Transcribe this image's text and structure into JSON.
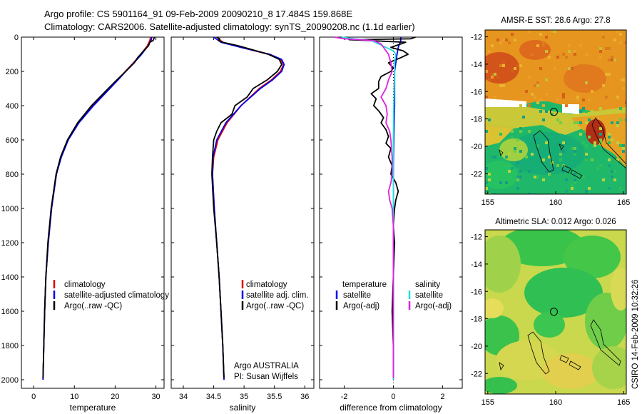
{
  "header": {
    "line1": "Argo profile: CS 5901164_91 09-Feb-2009 20090210_8 17.484S 159.868E",
    "line2": "Climatology: CARS2006. Satellite-adjusted climatology: synTS_20090208.nc (1.1d earlier)"
  },
  "colors": {
    "climatology": "#e00000",
    "satellite": "#0000ee",
    "argo": "#000000",
    "satellite_salinity": "#22dddd",
    "argo_salinity": "#dd22dd"
  },
  "panels": {
    "temperature": {
      "xlabel": "temperature",
      "legend": [
        "climatology",
        "satellite-adjusted climatology",
        "Argo(..raw -QC)"
      ]
    },
    "salinity": {
      "xlabel": "salinity",
      "legend": [
        "climatology",
        "satellite adj. clim.",
        "Argo(..raw -QC)"
      ],
      "note1": "Argo AUSTRALIA",
      "note2": "PI: Susan Wijffels"
    },
    "difference": {
      "xlabel": "difference from climatology",
      "legend_head_left": "temperature",
      "legend_head_right": "salinity",
      "legend_left": [
        "satellite",
        "Argo(-adj)"
      ],
      "legend_right": [
        "satellite",
        "Argo(-adj)"
      ]
    }
  },
  "maps": {
    "sst_title": "AMSR-E SST: 28.6 Argo: 27.8",
    "sla_title": "Altimetric SLA: 0.012 Argo: 0.026"
  },
  "footer": {
    "stamp": "CSIRO 14-Feb-2009 10:32:26"
  },
  "chart_data": [
    {
      "type": "line",
      "name": "temperature",
      "xlabel": "temperature",
      "ylabel": "",
      "xlim": [
        -3,
        32
      ],
      "ylim": [
        2050,
        0
      ],
      "xticks": [
        0,
        10,
        20,
        30
      ],
      "yticks": [
        0,
        200,
        400,
        600,
        800,
        1000,
        1200,
        1400,
        1600,
        1800,
        2000
      ],
      "legend_position": "lower-right",
      "series": [
        {
          "name": "climatology",
          "color": "#e00000",
          "depth": [
            0,
            20,
            50,
            100,
            150,
            200,
            250,
            300,
            400,
            500,
            600,
            700,
            800,
            1000,
            1200,
            1400,
            1600,
            1800,
            2000
          ],
          "values": [
            28.7,
            28.5,
            27.9,
            26.3,
            24.5,
            22.5,
            20.6,
            18.6,
            14.6,
            11.0,
            8.4,
            6.7,
            5.6,
            4.4,
            3.6,
            3.0,
            2.7,
            2.5,
            2.3
          ]
        },
        {
          "name": "satellite-adjusted climatology",
          "color": "#0000ee",
          "depth": [
            0,
            20,
            50,
            100,
            150,
            200,
            250,
            300,
            400,
            500,
            600,
            700,
            800,
            1000,
            1200,
            1400,
            1600,
            1800,
            2000
          ],
          "values": [
            29.0,
            28.8,
            28.1,
            26.5,
            24.6,
            22.6,
            20.7,
            18.7,
            14.7,
            11.1,
            8.5,
            6.8,
            5.6,
            4.4,
            3.6,
            3.0,
            2.7,
            2.5,
            2.3
          ]
        },
        {
          "name": "Argo(..raw -QC)",
          "color": "#000000",
          "depth": [
            0,
            10,
            20,
            30,
            50,
            80,
            120,
            150,
            200,
            250,
            300,
            400,
            500,
            600,
            700,
            800,
            1000,
            1200,
            1400,
            1600,
            1800,
            1990
          ],
          "values": [
            29.6,
            29.5,
            29.3,
            28.5,
            28.2,
            27.0,
            25.5,
            24.7,
            22.6,
            20.4,
            18.3,
            14.2,
            10.8,
            8.3,
            6.6,
            5.5,
            4.3,
            3.5,
            3.0,
            2.7,
            2.5,
            2.3
          ]
        }
      ]
    },
    {
      "type": "line",
      "name": "salinity",
      "xlabel": "salinity",
      "ylabel": "",
      "xlim": [
        33.8,
        36.15
      ],
      "ylim": [
        2050,
        0
      ],
      "xticks": [
        34,
        34.5,
        35,
        35.5,
        36
      ],
      "legend_position": "lower-right",
      "series": [
        {
          "name": "climatology",
          "color": "#e00000",
          "depth": [
            0,
            30,
            60,
            100,
            130,
            160,
            200,
            250,
            300,
            400,
            500,
            600,
            700,
            800,
            1000,
            1200,
            1400,
            1600,
            1800,
            2000
          ],
          "values": [
            34.55,
            34.65,
            34.95,
            35.4,
            35.6,
            35.65,
            35.6,
            35.45,
            35.25,
            34.95,
            34.72,
            34.57,
            34.5,
            34.48,
            34.51,
            34.55,
            34.59,
            34.62,
            34.65,
            34.67
          ]
        },
        {
          "name": "satellite adj. clim.",
          "color": "#0000ee",
          "depth": [
            0,
            30,
            60,
            100,
            130,
            160,
            200,
            250,
            300,
            400,
            500,
            600,
            700,
            800,
            1000,
            1200,
            1400,
            1600,
            1800,
            2000
          ],
          "values": [
            34.5,
            34.62,
            34.95,
            35.42,
            35.62,
            35.66,
            35.62,
            35.47,
            35.27,
            34.95,
            34.7,
            34.55,
            34.49,
            34.48,
            34.51,
            34.55,
            34.59,
            34.62,
            34.65,
            34.67
          ]
        },
        {
          "name": "Argo(..raw -QC)",
          "color": "#000000",
          "depth": [
            0,
            10,
            20,
            30,
            50,
            70,
            100,
            130,
            160,
            200,
            250,
            300,
            350,
            400,
            450,
            500,
            550,
            600,
            700,
            800,
            1000,
            1200,
            1400,
            1600,
            1800,
            1990
          ],
          "values": [
            34.55,
            34.6,
            34.58,
            34.65,
            34.9,
            35.1,
            35.4,
            35.58,
            35.62,
            35.55,
            35.38,
            35.15,
            35.05,
            34.85,
            34.8,
            34.62,
            34.55,
            34.5,
            34.48,
            34.47,
            34.5,
            34.55,
            34.59,
            34.62,
            34.65,
            34.67
          ]
        }
      ]
    },
    {
      "type": "line",
      "name": "difference",
      "xlabel": "difference from climatology",
      "ylabel": "",
      "xlim": [
        -3,
        2.8
      ],
      "ylim": [
        2050,
        0
      ],
      "xticks": [
        -2,
        0,
        2
      ],
      "legend_position": "lower-center",
      "series": [
        {
          "name": "temperature satellite",
          "color": "#0000ee",
          "depth": [
            0,
            20,
            40,
            60,
            100,
            200,
            400,
            600,
            800,
            1000,
            1400,
            2000
          ],
          "values": [
            0.3,
            0.3,
            0.25,
            0.2,
            0.15,
            0.05,
            0.05,
            0.02,
            0.0,
            0.0,
            0.0,
            0.0
          ]
        },
        {
          "name": "temperature Argo(-adj)",
          "color": "#000000",
          "depth": [
            0,
            10,
            15,
            20,
            30,
            40,
            60,
            80,
            100,
            120,
            150,
            180,
            200,
            230,
            260,
            300,
            330,
            360,
            400,
            430,
            470,
            500,
            540,
            580,
            620,
            650,
            700,
            750,
            800,
            850,
            900,
            950,
            1000,
            1100,
            1200,
            1400,
            1600,
            1800,
            1990
          ],
          "values": [
            0.9,
            0.7,
            -1.8,
            -1.0,
            0.5,
            0.3,
            -0.1,
            0.4,
            0.6,
            0.3,
            -0.2,
            0.0,
            -0.1,
            -0.5,
            -0.6,
            -0.6,
            -0.9,
            -0.7,
            -0.8,
            -0.6,
            -0.4,
            -0.5,
            -0.3,
            -0.2,
            -0.3,
            -0.1,
            -0.2,
            -0.05,
            -0.1,
            0.1,
            0.2,
            0.1,
            0.05,
            0.0,
            0.05,
            0.0,
            -0.05,
            0.0,
            0.0
          ]
        },
        {
          "name": "salinity satellite",
          "color": "#22dddd",
          "depth": [
            0,
            10,
            20,
            40,
            60,
            80,
            100,
            150,
            200,
            400,
            600,
            800,
            1000,
            1400,
            2000
          ],
          "values": [
            -2.1,
            -1.6,
            -0.9,
            -0.6,
            -0.3,
            0.0,
            0.1,
            0.05,
            0.05,
            0.02,
            0.0,
            0.0,
            0.0,
            0.0,
            0.0
          ]
        },
        {
          "name": "salinity Argo(-adj)",
          "color": "#dd22dd",
          "depth": [
            0,
            10,
            20,
            40,
            60,
            80,
            100,
            150,
            200,
            250,
            300,
            350,
            400,
            450,
            500,
            550,
            600,
            700,
            800,
            850,
            900,
            950,
            1000,
            1100,
            1200,
            1400,
            1600,
            1800,
            1990
          ],
          "values": [
            -2.4,
            -2.0,
            -0.8,
            -0.5,
            -0.4,
            -0.3,
            -0.2,
            -0.1,
            -0.05,
            -0.2,
            -0.3,
            -0.5,
            -0.3,
            -0.25,
            -0.3,
            -0.15,
            -0.1,
            -0.05,
            -0.05,
            -0.1,
            -0.2,
            -0.15,
            -0.05,
            0.0,
            0.0,
            0.0,
            0.0,
            0.0,
            0.0
          ]
        }
      ]
    },
    {
      "type": "heatmap",
      "name": "AMSR-E SST map",
      "title": "AMSR-E SST: 28.6 Argo: 27.8",
      "xlim": [
        154.8,
        165.2
      ],
      "ylim": [
        -23.5,
        -11.5
      ],
      "xticks": [
        155,
        160,
        165
      ],
      "yticks": [
        -12,
        -14,
        -16,
        -18,
        -20,
        -22
      ],
      "argo_position": [
        159.868,
        -17.484
      ]
    },
    {
      "type": "heatmap",
      "name": "Altimetric SLA map",
      "title": "Altimetric SLA: 0.012 Argo: 0.026",
      "xlim": [
        154.8,
        165.2
      ],
      "ylim": [
        -23.5,
        -11.5
      ],
      "xticks": [
        155,
        160,
        165
      ],
      "yticks": [
        -12,
        -14,
        -16,
        -18,
        -20,
        -22
      ],
      "argo_position": [
        159.868,
        -17.484
      ]
    }
  ]
}
